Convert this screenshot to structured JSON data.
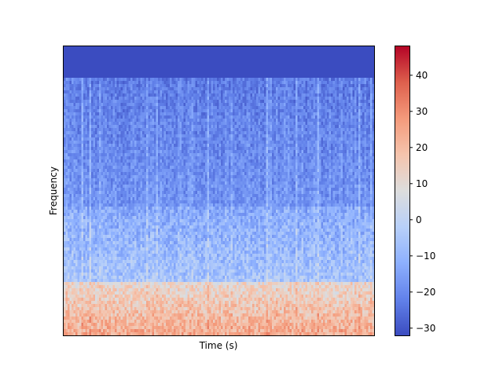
{
  "chart_data": {
    "type": "heatmap",
    "subtype": "spectrogram",
    "title": "",
    "xlabel": "Time (s)",
    "ylabel": "Frequency",
    "x_ticks_visible": false,
    "y_ticks_visible": false,
    "colormap": "coolwarm",
    "colorbar": {
      "range": [
        -32,
        48
      ],
      "ticks": [
        -30,
        -20,
        -10,
        0,
        10,
        20,
        30,
        40
      ],
      "tick_labels": [
        "−30",
        "−20",
        "−10",
        "0",
        "10",
        "20",
        "30",
        "40"
      ]
    },
    "description_of_values": {
      "top_band_value": -32,
      "high_freq_mean": -25,
      "mid_freq_mean": -15,
      "low_freq_mean": 10,
      "lowest_band_peak": 25
    },
    "colors": {
      "cmap_low": "#3b4cc0",
      "cmap_mid": "#dddddd",
      "cmap_high": "#b40426"
    }
  }
}
